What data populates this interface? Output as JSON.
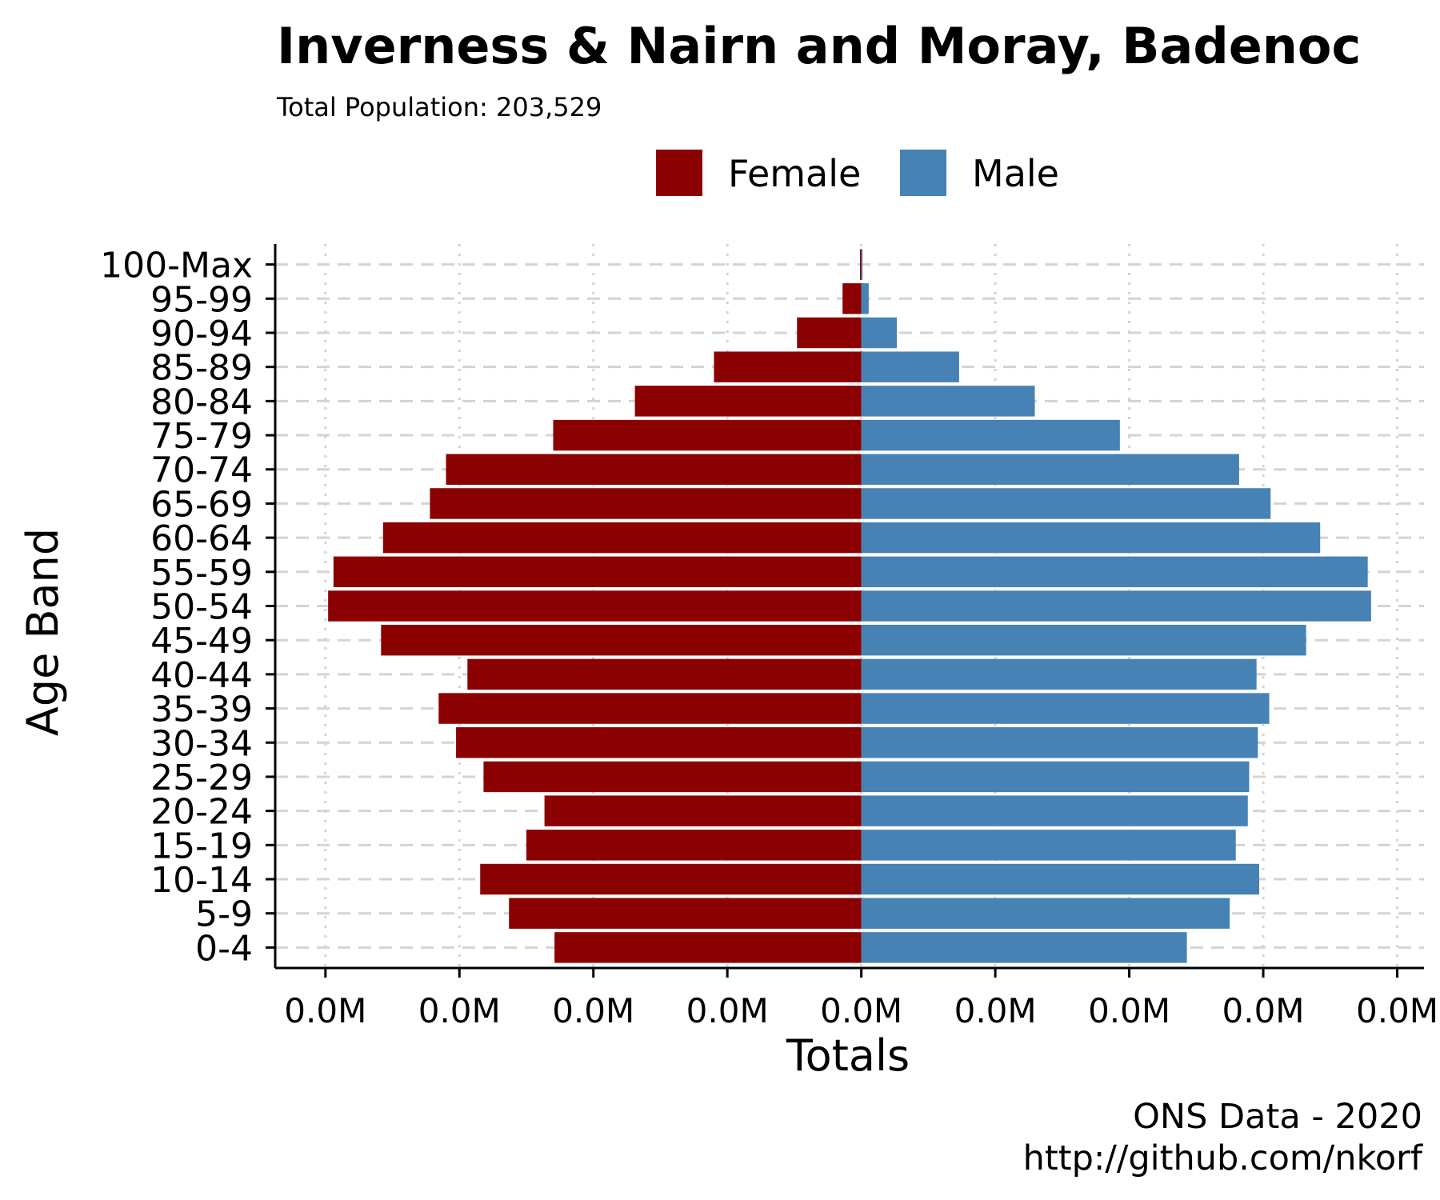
{
  "title": "Inverness & Nairn and Moray, Badenoc",
  "subtitle": "Total Population:  203,529",
  "caption": [
    "ONS Data - 2020",
    "http://github.com/nkorf"
  ],
  "colors": {
    "female": "#8B0000",
    "male": "#4682B4",
    "grid": "#d4d4d4"
  },
  "chart_data": {
    "type": "bar",
    "orientation": "horizontal",
    "layout": "population-pyramid",
    "xlabel": "Totals",
    "ylabel": "Age Band",
    "x_tick_labels": [
      "0.0M",
      "0.0M",
      "0.0M",
      "0.0M",
      "0.0M",
      "0.0M",
      "0.0M",
      "0.0M",
      "0.0M"
    ],
    "x_ticks": [
      -8000,
      -6000,
      -4000,
      -2000,
      0,
      2000,
      4000,
      6000,
      8000
    ],
    "xlim": [
      -8750,
      8400
    ],
    "grid": true,
    "legend": "top",
    "categories": [
      "0-4",
      "5-9",
      "10-14",
      "15-19",
      "20-24",
      "25-29",
      "30-34",
      "35-39",
      "40-44",
      "45-49",
      "50-54",
      "55-59",
      "60-64",
      "65-69",
      "70-74",
      "75-79",
      "80-84",
      "85-89",
      "90-94",
      "95-99",
      "100-Max"
    ],
    "series": [
      {
        "name": "Female",
        "values": [
          -4580,
          -5260,
          -5690,
          -5000,
          -4730,
          -5640,
          -6050,
          -6310,
          -5880,
          -7170,
          -7960,
          -7880,
          -7140,
          -6440,
          -6200,
          -4600,
          -3380,
          -2200,
          -960,
          -280,
          -20
        ]
      },
      {
        "name": "Male",
        "values": [
          4860,
          5500,
          5940,
          5590,
          5770,
          5790,
          5920,
          6090,
          5900,
          6640,
          7610,
          7560,
          6850,
          6110,
          5640,
          3860,
          2590,
          1460,
          530,
          110,
          10
        ]
      }
    ]
  }
}
